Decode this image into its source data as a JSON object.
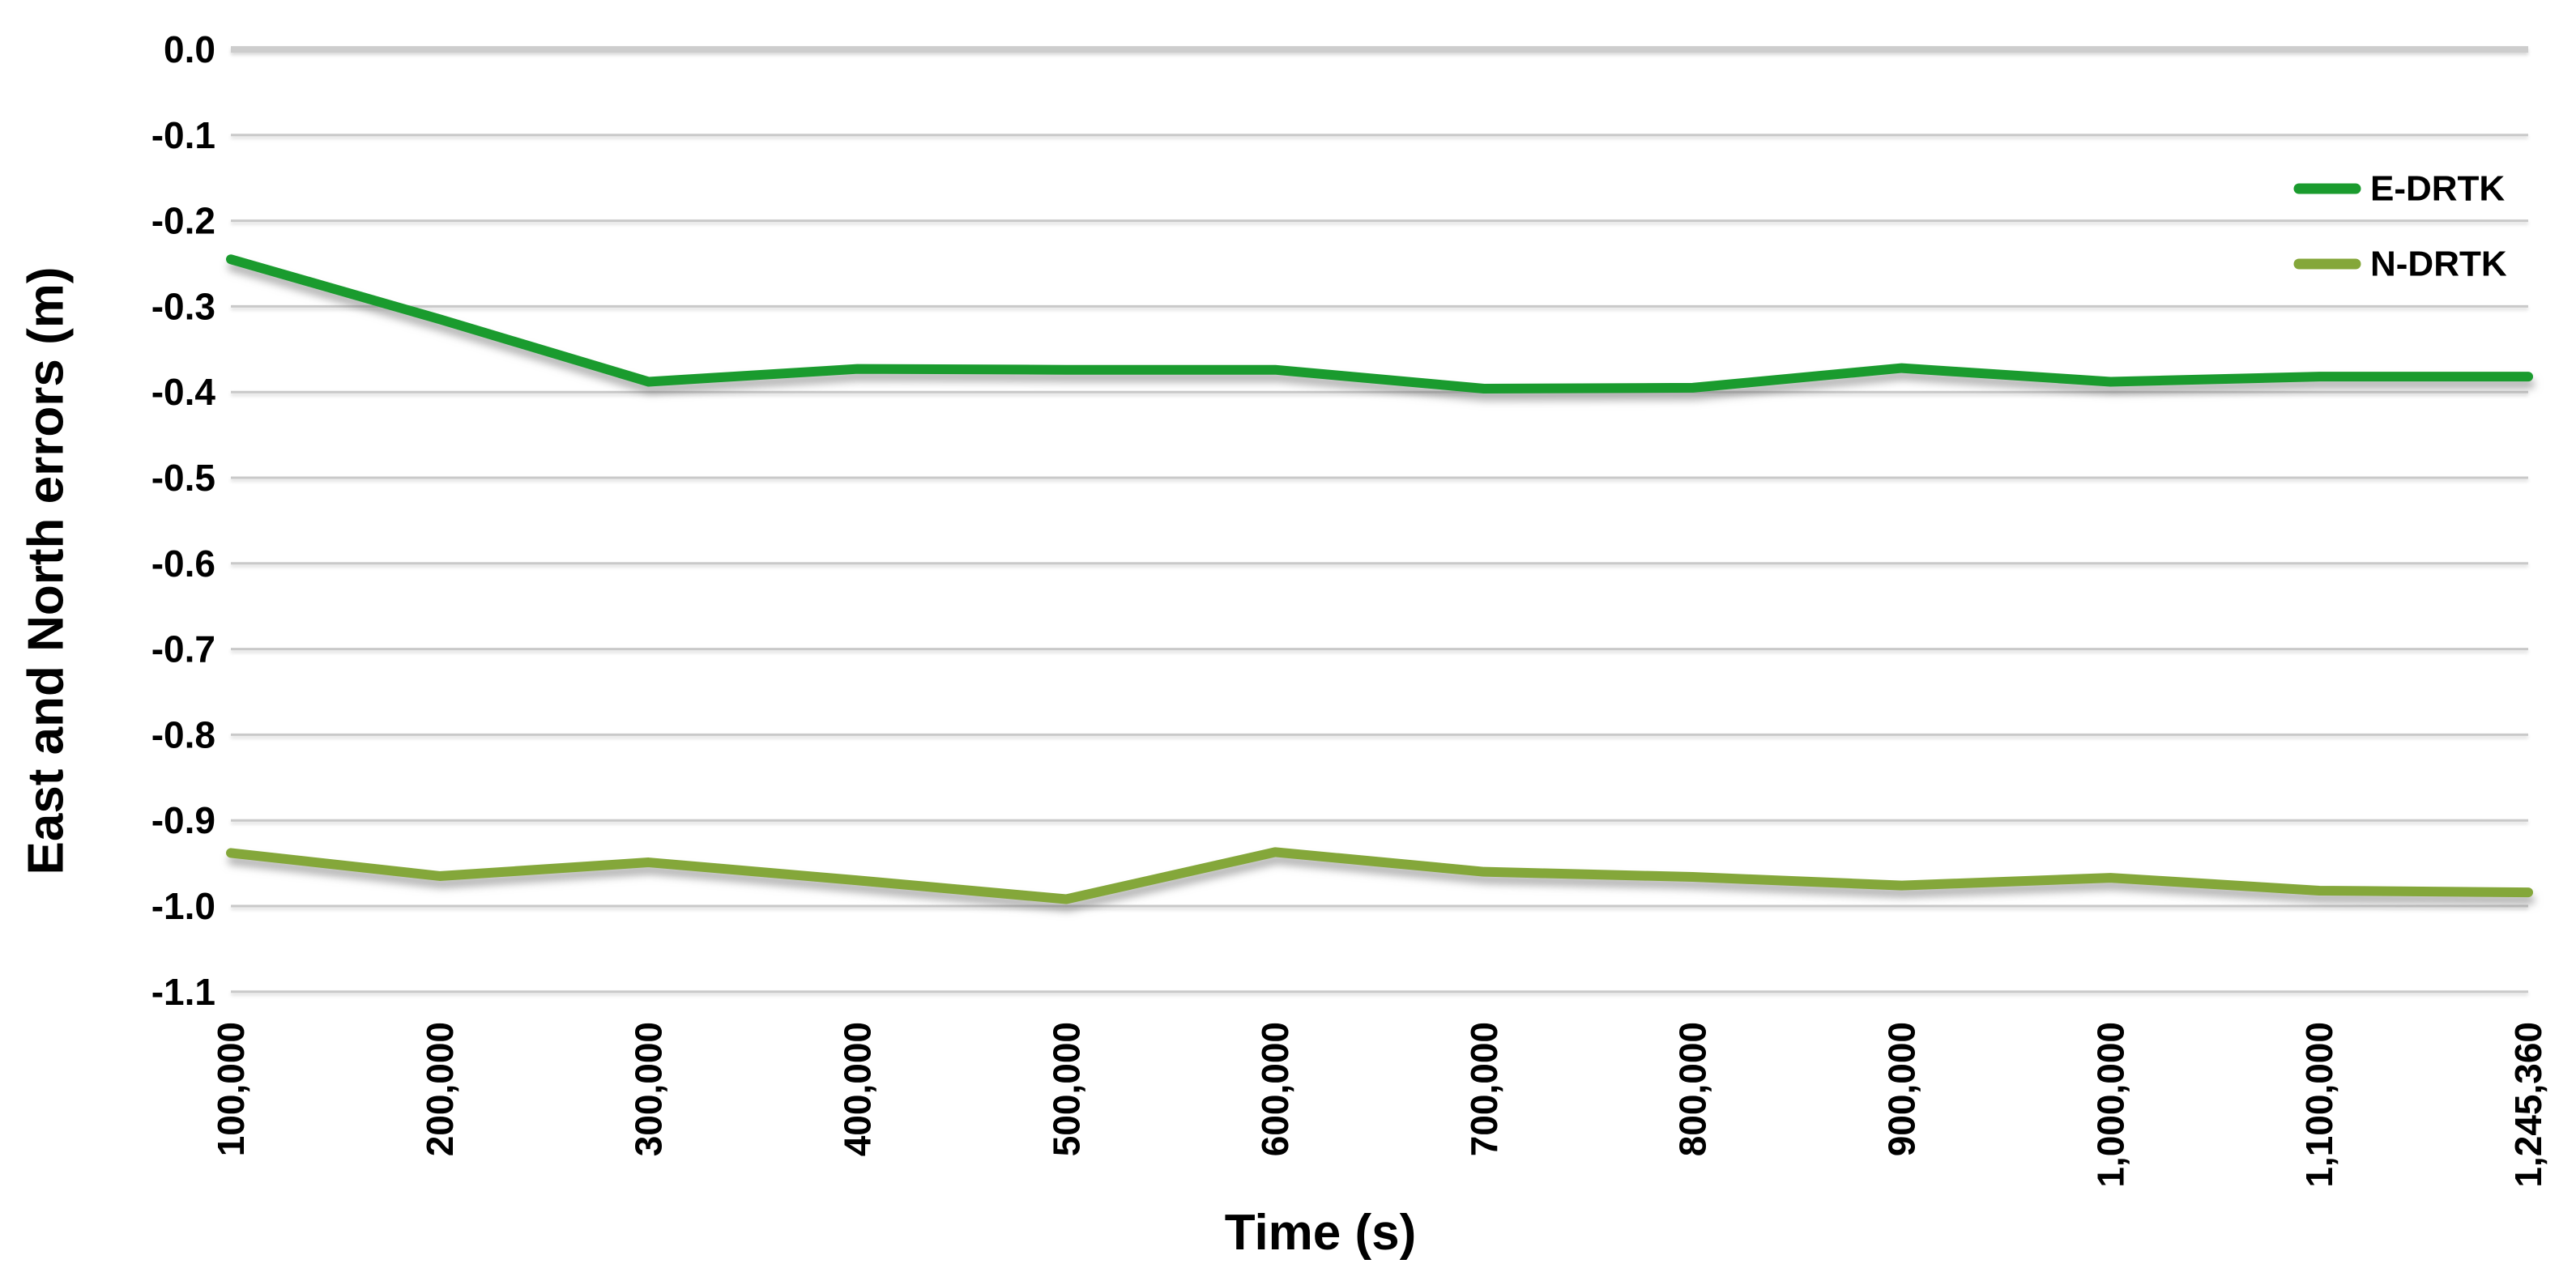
{
  "chart_data": {
    "type": "line",
    "title": "",
    "xlabel": "Time (s)",
    "ylabel": "East and North errors  (m)",
    "x_tick_labels": [
      "100,000",
      "200,000",
      "300,000",
      "400,000",
      "500,000",
      "600,000",
      "700,000",
      "800,000",
      "900,000",
      "1,000,000",
      "1,100,000",
      "1,245,360"
    ],
    "y_tick_labels": [
      "0.0",
      "-0.1",
      "-0.2",
      "-0.3",
      "-0.4",
      "-0.5",
      "-0.6",
      "-0.7",
      "-0.8",
      "-0.9",
      "-1.0",
      "-1.1"
    ],
    "ylim": [
      -1.1,
      0.0
    ],
    "grid": true,
    "legend_position": "top-right-inside",
    "series": [
      {
        "name": "E-DRTK",
        "color": "#1a9b2e",
        "values": [
          -0.245,
          -0.315,
          -0.388,
          -0.373,
          -0.374,
          -0.374,
          -0.396,
          -0.395,
          -0.372,
          -0.388,
          -0.382,
          -0.382
        ]
      },
      {
        "name": "N-DRTK",
        "color": "#84a73a",
        "values": [
          -0.938,
          -0.965,
          -0.949,
          -0.97,
          -0.992,
          -0.937,
          -0.96,
          -0.966,
          -0.976,
          -0.967,
          -0.982,
          -0.984
        ]
      }
    ],
    "colors": {
      "gridline": "#c9c9c9",
      "top_gridline": "#cdcdcd",
      "text": "#000000",
      "background": "#ffffff"
    }
  }
}
